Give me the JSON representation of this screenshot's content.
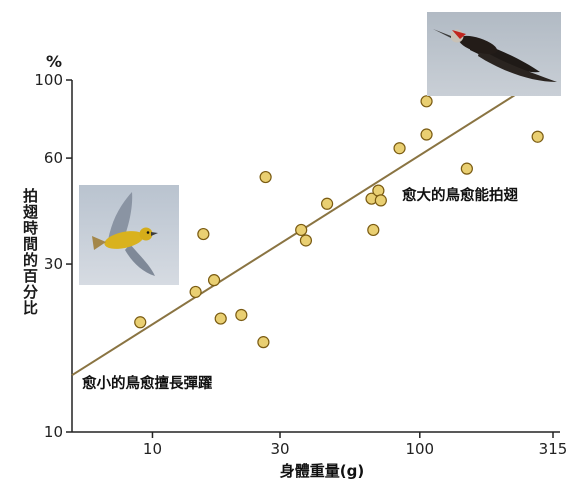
{
  "chart_data": {
    "type": "scatter",
    "title": "",
    "xlabel": "身體重量(g)",
    "ylabel": "拍翅時間的百分比",
    "y_unit": "%",
    "x_scale": "log",
    "y_scale": "log",
    "xlim": [
      5,
      315
    ],
    "ylim": [
      10,
      100
    ],
    "x_ticks": [
      10,
      30,
      100,
      315
    ],
    "y_ticks": [
      10,
      30,
      60,
      100
    ],
    "x_tick_labels": [
      "10",
      "30",
      "100",
      "315"
    ],
    "y_tick_labels": [
      "10",
      "30",
      "60",
      "100"
    ],
    "points": [
      {
        "x": 9,
        "y": 20.5
      },
      {
        "x": 14.5,
        "y": 25
      },
      {
        "x": 15.5,
        "y": 36.5
      },
      {
        "x": 17,
        "y": 27
      },
      {
        "x": 18,
        "y": 21
      },
      {
        "x": 21.5,
        "y": 21.5
      },
      {
        "x": 26,
        "y": 18
      },
      {
        "x": 26.5,
        "y": 53
      },
      {
        "x": 36,
        "y": 37.5
      },
      {
        "x": 37.5,
        "y": 35
      },
      {
        "x": 45,
        "y": 44.5
      },
      {
        "x": 66,
        "y": 46
      },
      {
        "x": 67,
        "y": 37.5
      },
      {
        "x": 70,
        "y": 48.5
      },
      {
        "x": 71.5,
        "y": 45.5
      },
      {
        "x": 84,
        "y": 64
      },
      {
        "x": 106,
        "y": 87
      },
      {
        "x": 106,
        "y": 70
      },
      {
        "x": 150,
        "y": 56
      },
      {
        "x": 276,
        "y": 69
      }
    ],
    "trendline": {
      "x": [
        5,
        245
      ],
      "y": [
        14.5,
        94
      ]
    },
    "annotations": {
      "large_birds": "愈大的鳥愈能拍翅",
      "small_birds": "愈小的鳥愈擅長彈躍"
    },
    "colors": {
      "point_fill": "#e9cf72",
      "point_stroke": "#7a5b12",
      "trendline": "#8a7442",
      "axis": "#222222"
    },
    "images": {
      "small_bird_photo": "yellow-warbler-in-flight",
      "large_bird_photo": "pileated-woodpecker-in-flight"
    }
  }
}
